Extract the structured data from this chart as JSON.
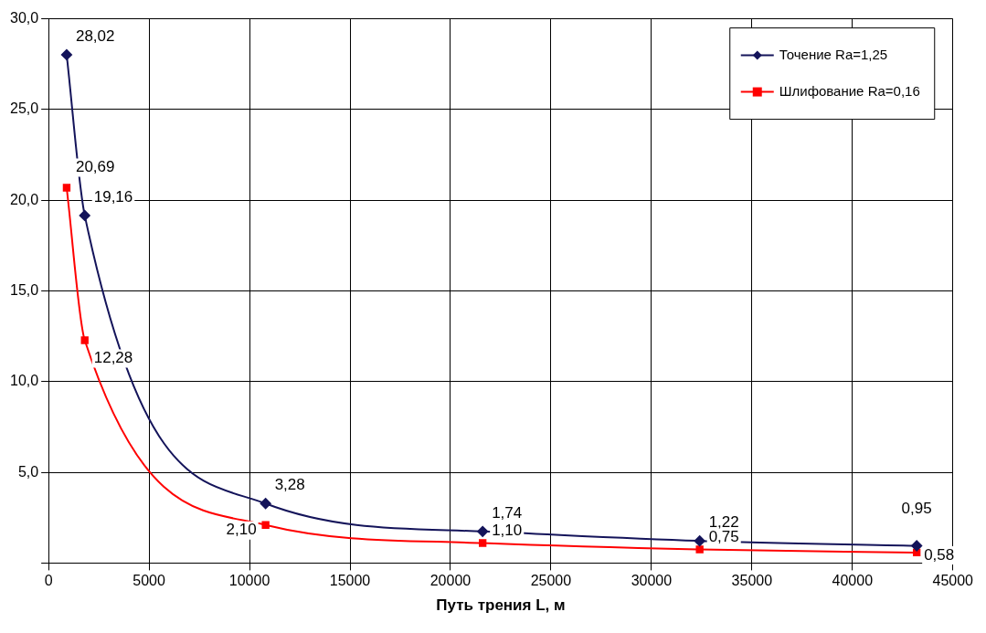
{
  "chart_data": {
    "type": "line",
    "xlabel": "Путь трения L, м",
    "x": [
      900,
      1800,
      10800,
      21600,
      32400,
      43200
    ],
    "xlim": [
      0,
      45000
    ],
    "xticks": [
      0,
      5000,
      10000,
      15000,
      20000,
      25000,
      30000,
      35000,
      40000,
      45000
    ],
    "ylim": [
      0,
      30
    ],
    "yticks": [
      {
        "value": 0,
        "label": null
      },
      {
        "value": 5,
        "label": "5,0"
      },
      {
        "value": 10,
        "label": "10,0"
      },
      {
        "value": 15,
        "label": "15,0"
      },
      {
        "value": 20,
        "label": "20,0"
      },
      {
        "value": 25,
        "label": "25,0"
      },
      {
        "value": 30,
        "label": "30,0"
      }
    ],
    "grid": true,
    "legend": "top right",
    "series": [
      {
        "name": "Точение Ra=1,25",
        "color": "#14145a",
        "marker": "diamond",
        "values": [
          28.02,
          19.16,
          3.28,
          1.74,
          1.22,
          0.95
        ],
        "value_labels": [
          "28,02",
          "19,16",
          "3,28",
          "1,74",
          "1,22",
          "0,95"
        ]
      },
      {
        "name": "Шлифование Ra=0,16",
        "color": "#ff0000",
        "marker": "square",
        "values": [
          20.69,
          12.28,
          2.1,
          1.1,
          0.75,
          0.58
        ],
        "value_labels": [
          "20,69",
          "12,28",
          "2,10",
          "1,10",
          "0,75",
          "0,58"
        ]
      }
    ]
  }
}
